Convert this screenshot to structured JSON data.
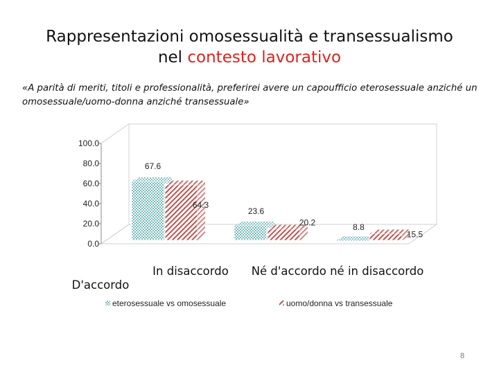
{
  "slide": {
    "title_line1": "Rappresentazioni omosessualità e transessualismo",
    "title_line2_prefix": "nel ",
    "title_line2_accent": "contesto lavorativo",
    "subtitle": "«A parità di meriti, titoli e professionalità, preferirei avere un capoufficio eterosessuale anziché un omosessuale/uomo-donna anziché transessuale»",
    "page_number": "8",
    "colors": {
      "accent": "#e0201c"
    }
  },
  "chart_data": {
    "type": "bar",
    "categories": [
      "D'accordo",
      "In disaccordo",
      "Né d'accordo né in disaccordo"
    ],
    "series": [
      {
        "name": "eterosessuale vs omosessuale",
        "values": [
          67.6,
          23.6,
          8.8
        ],
        "color": "#4aa3a3",
        "pattern": "dots"
      },
      {
        "name": "uomo/donna vs transessuale",
        "values": [
          64.3,
          20.2,
          15.5
        ],
        "color": "#c0504d",
        "pattern": "diagonal"
      }
    ],
    "yticks": [
      "0.0",
      "20.0",
      "40.0",
      "60.0",
      "80.0",
      "100.0"
    ],
    "ylim": [
      0,
      100
    ],
    "grid": false,
    "legend": "bottom",
    "three_d": true
  }
}
